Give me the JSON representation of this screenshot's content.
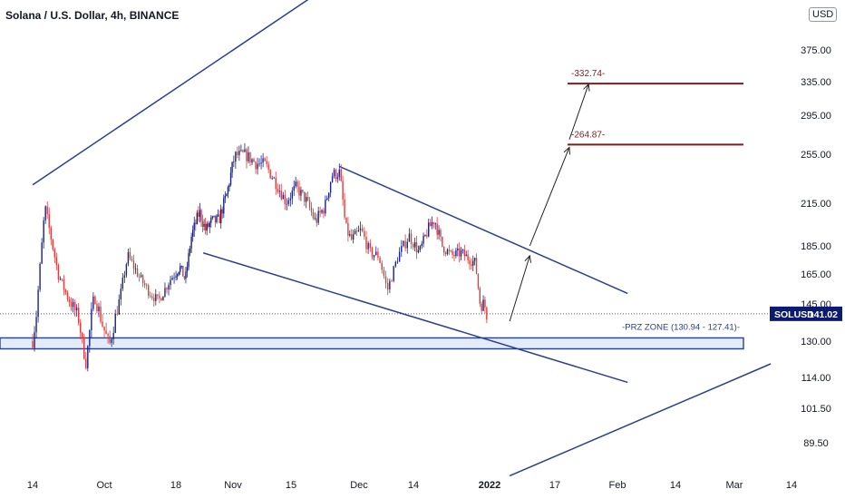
{
  "header": {
    "title": "Solana / U.S. Dollar, 4h, BINANCE",
    "currency": "USD"
  },
  "chart_data": {
    "type": "candlestick",
    "symbol": "SOLUSD",
    "last_price": 141.02,
    "y_ticks": [
      375.0,
      335.0,
      295.0,
      255.0,
      215.0,
      185.0,
      165.0,
      145.0,
      130.0,
      114.0,
      101.5,
      89.5
    ],
    "x_ticks": [
      "14",
      "Oct",
      "18",
      "Nov",
      "15",
      "Dec",
      "14",
      "2022",
      "17",
      "Feb",
      "14",
      "Mar",
      "14"
    ],
    "price_path": [
      [
        0,
        130
      ],
      [
        0.4,
        142
      ],
      [
        1.2,
        212
      ],
      [
        2.5,
        165
      ],
      [
        3.5,
        148
      ],
      [
        4.5,
        139
      ],
      [
        5.2,
        120
      ],
      [
        6,
        150
      ],
      [
        6.8,
        137
      ],
      [
        7.5,
        128
      ],
      [
        8.5,
        148
      ],
      [
        9.3,
        178
      ],
      [
        10.5,
        162
      ],
      [
        11.5,
        152
      ],
      [
        12.3,
        147
      ],
      [
        13.5,
        162
      ],
      [
        14.5,
        170
      ],
      [
        15.2,
        161
      ],
      [
        16,
        192
      ],
      [
        17,
        209
      ],
      [
        17.8,
        196
      ],
      [
        18.5,
        202
      ],
      [
        19.5,
        203
      ],
      [
        20.5,
        222
      ],
      [
        21.5,
        254
      ],
      [
        22.5,
        255
      ],
      [
        23.5,
        248
      ],
      [
        24.5,
        246
      ],
      [
        25.5,
        232
      ],
      [
        26.5,
        216
      ],
      [
        27.5,
        228
      ],
      [
        28.5,
        218
      ],
      [
        29.5,
        202
      ],
      [
        30.5,
        213
      ],
      [
        31.2,
        238
      ],
      [
        32,
        240
      ],
      [
        32.6,
        198
      ],
      [
        33.2,
        189
      ],
      [
        34.2,
        196
      ],
      [
        35,
        180
      ],
      [
        35.8,
        178
      ],
      [
        36.6,
        154
      ],
      [
        37.6,
        178
      ],
      [
        38.6,
        192
      ],
      [
        39.6,
        180
      ],
      [
        40.5,
        196
      ],
      [
        41.2,
        204
      ],
      [
        42,
        185
      ],
      [
        43,
        178
      ],
      [
        44,
        180
      ],
      [
        44.8,
        176
      ],
      [
        45.5,
        173
      ],
      [
        46,
        145
      ],
      [
        46.4,
        146
      ],
      [
        46.7,
        141
      ]
    ],
    "trendlines": [
      {
        "name": "outer-upper",
        "points": [
          [
            0,
            230
          ],
          [
            43,
            560
          ]
        ],
        "color": "#2a3f8f"
      },
      {
        "name": "outer-lower",
        "points": [
          [
            49,
            78
          ],
          [
            75,
            120
          ]
        ],
        "color": "#2a3f8f"
      },
      {
        "name": "wedge-upper",
        "points": [
          [
            32,
            245
          ],
          [
            61,
            152
          ]
        ],
        "color": "#2a3f8f"
      },
      {
        "name": "wedge-lower",
        "points": [
          [
            17.5,
            180
          ],
          [
            61,
            112
          ]
        ],
        "color": "#2a3f8f"
      }
    ],
    "projection_arrows": [
      {
        "name": "arrow-to-first-target",
        "points": [
          [
            49,
            138
          ],
          [
            51,
            178
          ]
        ]
      },
      {
        "name": "arrow-to-second-target",
        "points": [
          [
            51,
            185
          ],
          [
            55,
            262
          ]
        ]
      },
      {
        "name": "arrow-to-third-target",
        "points": [
          [
            55,
            270
          ],
          [
            57,
            332
          ]
        ]
      }
    ],
    "targets": [
      {
        "label": "-332.74-",
        "value": 332.74,
        "color": "#7a1f1f"
      },
      {
        "label": "-264.87-",
        "value": 264.87,
        "color": "#7a1f1f"
      }
    ],
    "zone": {
      "label": "-PRZ ZONE (130.94 - 127.41)-",
      "high": 130.94,
      "low": 127.41,
      "color": "#2a3f8f"
    },
    "colors": {
      "up": "#1a237e",
      "down": "#e53935",
      "accent": "#0d1b6e"
    }
  }
}
